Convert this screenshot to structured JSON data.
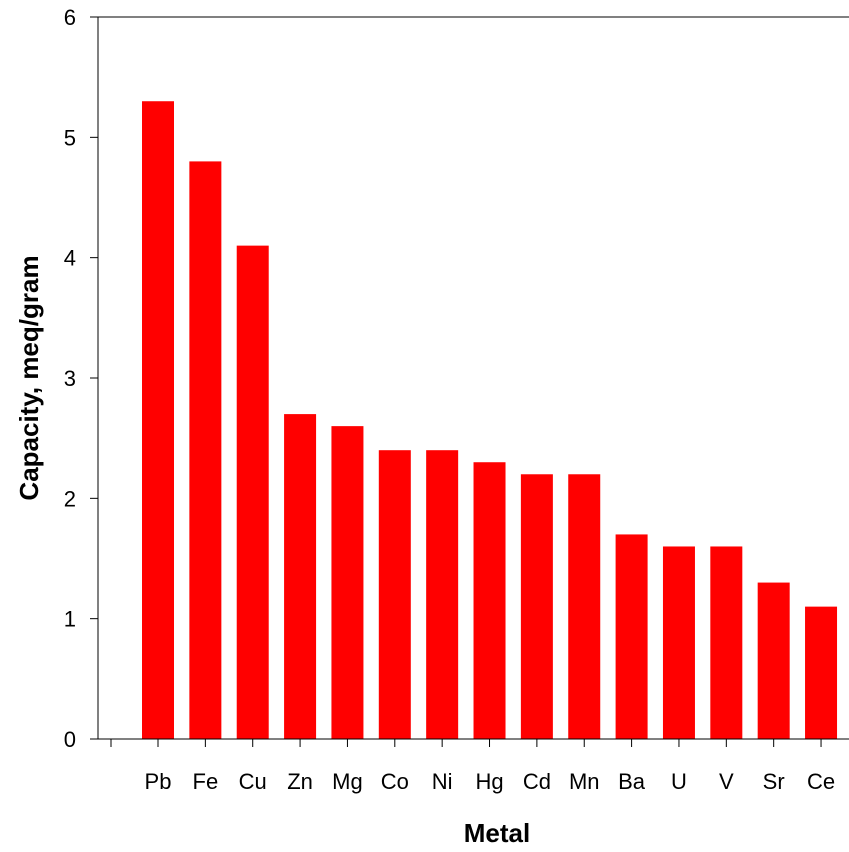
{
  "chart_data": {
    "type": "bar",
    "title": "",
    "xlabel": "Metal",
    "ylabel": "Capacity, meq/gram",
    "categories": [
      "Pb",
      "Fe",
      "Cu",
      "Zn",
      "Mg",
      "Co",
      "Ni",
      "Hg",
      "Cd",
      "Mn",
      "Ba",
      "U",
      "V",
      "Sr",
      "Ce"
    ],
    "values": [
      5.3,
      4.8,
      4.1,
      2.7,
      2.6,
      2.4,
      2.4,
      2.3,
      2.2,
      2.2,
      1.7,
      1.6,
      1.6,
      1.3,
      1.1
    ],
    "ylim": [
      0,
      6
    ],
    "yticks": [
      "0",
      "1",
      "2",
      "3",
      "4",
      "5",
      "6"
    ],
    "grid": false,
    "bar_color": "#ff0000"
  }
}
